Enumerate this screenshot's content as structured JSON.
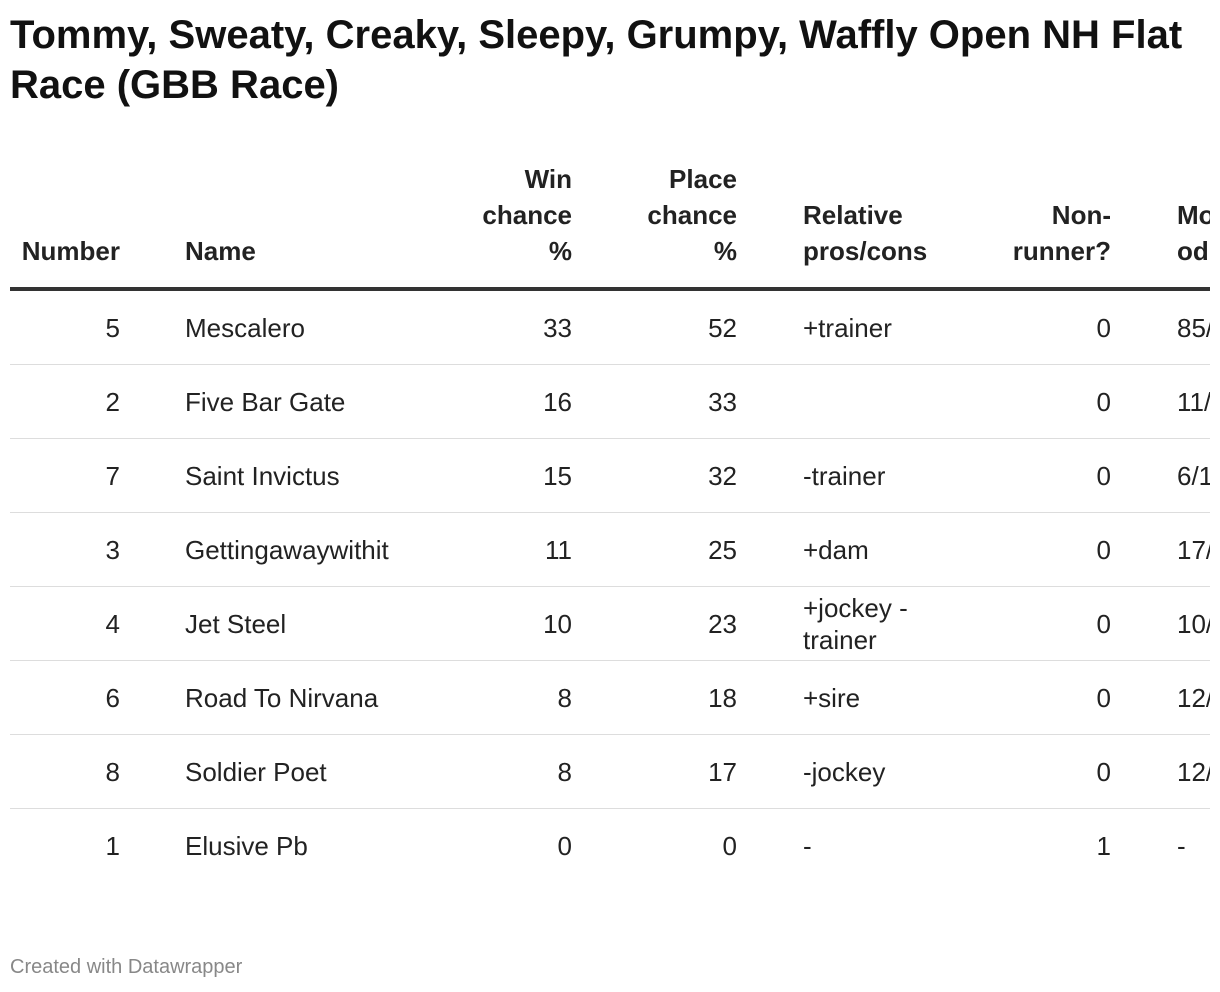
{
  "title": "Tommy, Sweaty, Creaky, Sleepy, Grumpy, Waffly Open NH Flat Race (GBB Race)",
  "table": {
    "headers": [
      "Number",
      "Name",
      "Win chance %",
      "Place chance %",
      "Relative pros/cons",
      "Non-runner?",
      "Mo od"
    ],
    "rows": [
      [
        5,
        "Mescalero",
        33,
        52,
        "+trainer",
        0,
        "85/"
      ],
      [
        2,
        "Five Bar Gate",
        16,
        33,
        null,
        0,
        "11/"
      ],
      [
        7,
        "Saint Invictus",
        15,
        32,
        "-trainer",
        0,
        "6/1"
      ],
      [
        3,
        "Gettingawaywithit",
        11,
        25,
        "+dam",
        0,
        "17/"
      ],
      [
        4,
        "Jet Steel",
        10,
        23,
        "+jockey -trainer",
        0,
        "10/"
      ],
      [
        6,
        "Road To Nirvana",
        8,
        18,
        "+sire",
        0,
        "12/"
      ],
      [
        8,
        "Soldier Poet",
        8,
        17,
        "-jockey",
        0,
        "12/"
      ],
      [
        1,
        "Elusive Pb",
        0,
        0,
        "-",
        1,
        "-"
      ]
    ]
  },
  "footer": "Created with Datawrapper"
}
